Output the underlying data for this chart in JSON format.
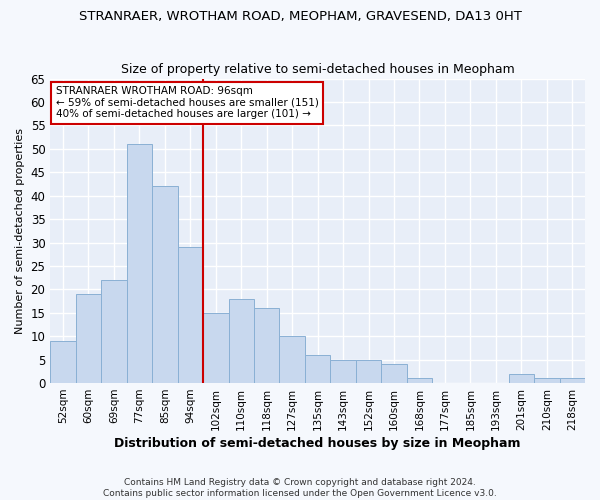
{
  "title": "STRANRAER, WROTHAM ROAD, MEOPHAM, GRAVESEND, DA13 0HT",
  "subtitle": "Size of property relative to semi-detached houses in Meopham",
  "xlabel": "Distribution of semi-detached houses by size in Meopham",
  "ylabel": "Number of semi-detached properties",
  "bar_labels": [
    "52sqm",
    "60sqm",
    "69sqm",
    "77sqm",
    "85sqm",
    "94sqm",
    "102sqm",
    "110sqm",
    "118sqm",
    "127sqm",
    "135sqm",
    "143sqm",
    "152sqm",
    "160sqm",
    "168sqm",
    "177sqm",
    "185sqm",
    "193sqm",
    "201sqm",
    "210sqm",
    "218sqm"
  ],
  "bar_heights": [
    9,
    19,
    22,
    51,
    42,
    29,
    15,
    18,
    16,
    10,
    6,
    5,
    5,
    4,
    1,
    0,
    0,
    0,
    2,
    1,
    1
  ],
  "bar_color": "#c8d8ee",
  "bar_edge_color": "#8ab0d4",
  "reference_line_index": 5,
  "reference_line_color": "#cc0000",
  "annotation_line1": "STRANRAER WROTHAM ROAD: 96sqm",
  "annotation_line2": "← 59% of semi-detached houses are smaller (151)",
  "annotation_line3": "40% of semi-detached houses are larger (101) →",
  "annotation_box_color": "#ffffff",
  "annotation_box_edge": "#cc0000",
  "ylim": [
    0,
    65
  ],
  "yticks": [
    0,
    5,
    10,
    15,
    20,
    25,
    30,
    35,
    40,
    45,
    50,
    55,
    60,
    65
  ],
  "footer": "Contains HM Land Registry data © Crown copyright and database right 2024.\nContains public sector information licensed under the Open Government Licence v3.0.",
  "bg_color": "#f5f8fd",
  "plot_bg_color": "#e8eef8",
  "grid_color": "#ffffff"
}
